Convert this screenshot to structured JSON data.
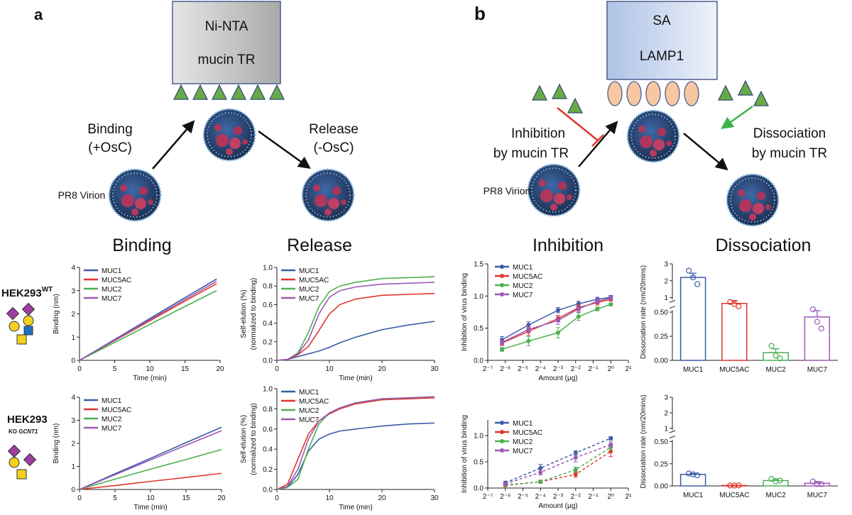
{
  "diagram": {
    "a": {
      "letter": "a",
      "box": [
        "Ni-NTA",
        "mucin TR"
      ],
      "binding": [
        "Binding",
        "(+OsC)"
      ],
      "release": [
        "Release",
        "(-OsC)"
      ],
      "virion": "PR8 Virion"
    },
    "b": {
      "letter": "b",
      "box": [
        "SA",
        "LAMP1"
      ],
      "inhibition": [
        "Inhibition",
        "by mucin TR"
      ],
      "dissociation": [
        "Dissociation",
        "by mucin TR"
      ],
      "virion": "PR8 Virion"
    }
  },
  "sections": [
    "Binding",
    "Release",
    "Inhibition",
    "Dissociation"
  ],
  "rows": [
    {
      "cell": "HEK293",
      "mark": "WT"
    },
    {
      "cell": "HEK293",
      "prefix": "KO",
      "gene": "GCNT1"
    }
  ],
  "chart_data": [
    {
      "type": "line",
      "xlabel": "Time (min)",
      "ylabel": [
        "Binding (nm)"
      ],
      "x": [
        0,
        5,
        10,
        15,
        19.5
      ],
      "xlim": [
        0,
        20
      ],
      "xticks": [
        0,
        5,
        10,
        15,
        20
      ],
      "ylim": [
        0,
        4
      ],
      "yticks": [
        0,
        1,
        2,
        3,
        4
      ],
      "series": [
        {
          "name": "MUC1",
          "color": "#3b5ca8",
          "values": [
            0,
            0.9,
            1.8,
            2.7,
            3.5
          ]
        },
        {
          "name": "MUC5AC",
          "color": "#e0362c",
          "values": [
            0,
            0.85,
            1.7,
            2.55,
            3.3
          ]
        },
        {
          "name": "MUC2",
          "color": "#4caf50",
          "values": [
            0,
            0.77,
            1.55,
            2.32,
            3.0
          ]
        },
        {
          "name": "MUC7",
          "color": "#9b59b6",
          "values": [
            0,
            0.87,
            1.75,
            2.62,
            3.4
          ]
        }
      ]
    },
    {
      "type": "line",
      "xlabel": "Time (min)",
      "ylabel": [
        "Self-elution (%)",
        "(normalized to binding)"
      ],
      "x": [
        0,
        2,
        4,
        6,
        8,
        10,
        12,
        15,
        20,
        25,
        30
      ],
      "xlim": [
        0,
        30
      ],
      "xticks": [
        0,
        10,
        20,
        30
      ],
      "ylim": [
        0,
        1
      ],
      "yticks": [
        {
          "value": 0,
          "label": "0.0"
        },
        0.2,
        0.4,
        0.6,
        0.8,
        {
          "value": 1,
          "label": "1.0"
        }
      ],
      "series": [
        {
          "name": "MUC1",
          "color": "#3b5ca8",
          "values": [
            0,
            0.01,
            0.04,
            0.07,
            0.1,
            0.14,
            0.19,
            0.25,
            0.33,
            0.38,
            0.42
          ]
        },
        {
          "name": "MUC5AC",
          "color": "#e0362c",
          "values": [
            0,
            0.01,
            0.06,
            0.15,
            0.32,
            0.5,
            0.6,
            0.66,
            0.7,
            0.71,
            0.72
          ]
        },
        {
          "name": "MUC2",
          "color": "#4caf50",
          "values": [
            0,
            0.01,
            0.08,
            0.3,
            0.58,
            0.74,
            0.8,
            0.84,
            0.88,
            0.89,
            0.9
          ]
        },
        {
          "name": "MUC7",
          "color": "#9b59b6",
          "values": [
            0,
            0.01,
            0.07,
            0.22,
            0.5,
            0.68,
            0.75,
            0.79,
            0.82,
            0.83,
            0.84
          ]
        }
      ]
    },
    {
      "type": "scatter",
      "xlabel": "Amount (μg)",
      "ylabel": [
        "Inhibition of virus binding"
      ],
      "xscale": "log2",
      "dashed": false,
      "x": [
        0.0137,
        0.039,
        0.125,
        0.28,
        0.59,
        1.0
      ],
      "xlim": [
        0.0078125,
        2
      ],
      "xticks": [
        {
          "value": 0.0078125,
          "label": "2⁻⁷"
        },
        {
          "value": 0.015625,
          "label": "2⁻⁶"
        },
        {
          "value": 0.03125,
          "label": "2⁻⁵"
        },
        {
          "value": 0.0625,
          "label": "2⁻⁴"
        },
        {
          "value": 0.125,
          "label": "2⁻³"
        },
        {
          "value": 0.25,
          "label": "2⁻²"
        },
        {
          "value": 0.5,
          "label": "2⁻¹"
        },
        {
          "value": 1,
          "label": "2⁰"
        },
        {
          "value": 2,
          "label": "2¹"
        }
      ],
      "ylim": [
        0,
        1.5
      ],
      "yticks": [
        {
          "value": 0,
          "label": "0.0"
        },
        0.5,
        {
          "value": 1,
          "label": "1.0"
        },
        1.5
      ],
      "series": [
        {
          "name": "MUC1",
          "color": "#3b5ca8",
          "values": [
            0.32,
            0.55,
            0.78,
            0.88,
            0.95,
            0.98
          ],
          "errors": [
            0.05,
            0.05,
            0.04,
            0.04,
            0.03,
            0.03
          ]
        },
        {
          "name": "MUC5AC",
          "color": "#e0362c",
          "values": [
            0.27,
            0.45,
            0.65,
            0.82,
            0.9,
            0.95
          ],
          "errors": [
            0.04,
            0.06,
            0.05,
            0.05,
            0.04,
            0.03
          ]
        },
        {
          "name": "MUC2",
          "color": "#4caf50",
          "values": [
            0.17,
            0.3,
            0.43,
            0.68,
            0.8,
            0.87
          ],
          "errors": [
            0.03,
            0.07,
            0.08,
            0.06,
            0.03,
            0.02
          ]
        },
        {
          "name": "MUC7",
          "color": "#9b59b6",
          "values": [
            0.28,
            0.48,
            0.62,
            0.8,
            0.92,
            0.97
          ],
          "errors": [
            0.04,
            0.05,
            0.06,
            0.05,
            0.04,
            0.03
          ]
        }
      ]
    },
    {
      "type": "bar",
      "ylabel": [
        "Dissociation rate (nm/20mins)"
      ],
      "categories": [
        "MUC1",
        "MUC5AC",
        "MUC2",
        "MUC7"
      ],
      "colors": [
        "#3b5ca8",
        "#e0362c",
        "#4caf50",
        "#9b59b6"
      ],
      "values": [
        2.2,
        0.8,
        0.08,
        0.45
      ],
      "errors": [
        0.25,
        0.1,
        0.04,
        0.1
      ],
      "points": [
        [
          2.6,
          2.2,
          1.8
        ],
        [
          0.85,
          0.78,
          0.7
        ],
        [
          0.15,
          0.05,
          0.02
        ],
        [
          0.6,
          0.4,
          0.33
        ]
      ],
      "ylim": [
        0,
        3
      ],
      "ybreak": [
        0.5,
        1
      ],
      "yticks": [
        {
          "value": 0,
          "label": "0.00"
        },
        0.25,
        {
          "value": 0.5,
          "label": "0.50"
        },
        1,
        2,
        3
      ]
    },
    {
      "type": "line",
      "xlabel": "Time (min)",
      "ylabel": [
        "Binding (nm)"
      ],
      "x": [
        0,
        5,
        10,
        15,
        20
      ],
      "xlim": [
        0,
        20
      ],
      "xticks": [
        0,
        5,
        10,
        15,
        20
      ],
      "ylim": [
        0,
        4
      ],
      "yticks": [
        0,
        1,
        2,
        3,
        4
      ],
      "series": [
        {
          "name": "MUC1",
          "color": "#3b5ca8",
          "values": [
            0,
            0.68,
            1.35,
            2.03,
            2.7
          ]
        },
        {
          "name": "MUC5AC",
          "color": "#e0362c",
          "values": [
            0,
            0.17,
            0.35,
            0.52,
            0.7
          ]
        },
        {
          "name": "MUC2",
          "color": "#4caf50",
          "values": [
            0,
            0.45,
            0.88,
            1.3,
            1.73
          ]
        },
        {
          "name": "MUC7",
          "color": "#9b59b6",
          "values": [
            0,
            0.64,
            1.28,
            1.92,
            2.55
          ]
        }
      ]
    },
    {
      "type": "line",
      "xlabel": "Time (min)",
      "ylabel": [
        "Self-elution (%)",
        "(normalized to binding)"
      ],
      "x": [
        0,
        2,
        4,
        6,
        8,
        10,
        12,
        15,
        20,
        25,
        30
      ],
      "xlim": [
        0,
        30
      ],
      "xticks": [
        0,
        10,
        20,
        30
      ],
      "ylim": [
        0,
        1
      ],
      "yticks": [
        {
          "value": 0,
          "label": "0.0"
        },
        0.2,
        0.4,
        0.6,
        0.8,
        {
          "value": 1,
          "label": "1.0"
        }
      ],
      "series": [
        {
          "name": "MUC1",
          "color": "#3b5ca8",
          "values": [
            0,
            0.02,
            0.15,
            0.38,
            0.5,
            0.55,
            0.58,
            0.6,
            0.63,
            0.65,
            0.66
          ]
        },
        {
          "name": "MUC5AC",
          "color": "#e0362c",
          "values": [
            0,
            0.05,
            0.3,
            0.55,
            0.68,
            0.75,
            0.8,
            0.85,
            0.89,
            0.9,
            0.91
          ]
        },
        {
          "name": "MUC2",
          "color": "#4caf50",
          "values": [
            0,
            0.02,
            0.1,
            0.4,
            0.65,
            0.76,
            0.81,
            0.86,
            0.9,
            0.91,
            0.92
          ]
        },
        {
          "name": "MUC7",
          "color": "#9b59b6",
          "values": [
            0,
            0.03,
            0.2,
            0.5,
            0.68,
            0.76,
            0.81,
            0.86,
            0.9,
            0.91,
            0.92
          ]
        }
      ]
    },
    {
      "type": "scatter",
      "xlabel": "Amount (μg)",
      "ylabel": [
        "Inhibition of virus binding"
      ],
      "xscale": "log2",
      "dashed": true,
      "x": [
        0.015625,
        0.0625,
        0.25,
        1
      ],
      "xlim": [
        0.0078125,
        2
      ],
      "xticks": [
        {
          "value": 0.0078125,
          "label": "2⁻⁷"
        },
        {
          "value": 0.015625,
          "label": "2⁻⁶"
        },
        {
          "value": 0.03125,
          "label": "2⁻⁵"
        },
        {
          "value": 0.0625,
          "label": "2⁻⁴"
        },
        {
          "value": 0.125,
          "label": "2⁻³"
        },
        {
          "value": 0.25,
          "label": "2⁻²"
        },
        {
          "value": 0.5,
          "label": "2⁻¹"
        },
        {
          "value": 1,
          "label": "2⁰"
        },
        {
          "value": 2,
          "label": "2¹"
        }
      ],
      "ylim": [
        0,
        1.3
      ],
      "yticks": [
        {
          "value": 0,
          "label": "0.0"
        },
        0.5,
        {
          "value": 1,
          "label": "1.0"
        }
      ],
      "series": [
        {
          "name": "MUC1",
          "color": "#3b5ca8",
          "values": [
            0.1,
            0.38,
            0.67,
            0.95
          ],
          "errors": [
            0.03,
            0.07,
            0.04,
            0.03
          ]
        },
        {
          "name": "MUC5AC",
          "color": "#e0362c",
          "values": [
            0.05,
            0.12,
            0.26,
            0.7
          ],
          "errors": [
            0.02,
            0.03,
            0.05,
            0.1
          ]
        },
        {
          "name": "MUC2",
          "color": "#4caf50",
          "values": [
            0.06,
            0.12,
            0.35,
            0.78
          ],
          "errors": [
            0.02,
            0.03,
            0.05,
            0.07
          ]
        },
        {
          "name": "MUC7",
          "color": "#9b59b6",
          "values": [
            0.08,
            0.3,
            0.58,
            0.83
          ],
          "errors": [
            0.02,
            0.05,
            0.08,
            0.06
          ]
        }
      ]
    },
    {
      "type": "bar",
      "ylabel": [
        "Dissociation rate (nm/20mins)"
      ],
      "categories": [
        "MUC1",
        "MUC5AC",
        "MUC2",
        "MUC7"
      ],
      "colors": [
        "#3b5ca8",
        "#e0362c",
        "#4caf50",
        "#9b59b6"
      ],
      "values": [
        0.13,
        0.005,
        0.06,
        0.03
      ],
      "errors": [
        0.01,
        0.002,
        0.02,
        0.02
      ],
      "points": [
        [
          0.14,
          0.13,
          0.12
        ],
        [
          0.005,
          0.004,
          0.006
        ],
        [
          0.08,
          0.05,
          0.06
        ],
        [
          0.05,
          0.02,
          0.02
        ]
      ],
      "ylim": [
        0,
        3
      ],
      "ybreak": [
        0.5,
        1
      ],
      "yticks": [
        {
          "value": 0,
          "label": "0.00"
        },
        0.25,
        {
          "value": 0.5,
          "label": "0.50"
        },
        1,
        2,
        3
      ]
    }
  ]
}
